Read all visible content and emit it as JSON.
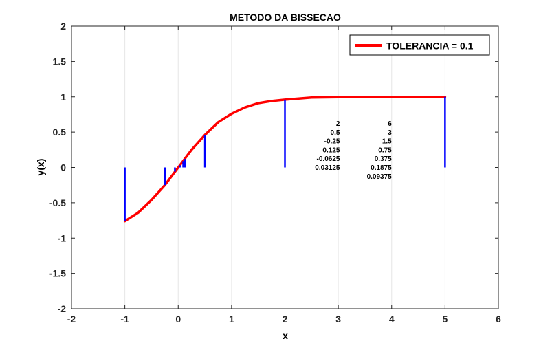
{
  "chart_data": {
    "type": "line",
    "title": "METODO DA BISSECAO",
    "xlabel": "x",
    "ylabel": "y(x)",
    "xlim": [
      -2,
      6
    ],
    "ylim": [
      -2,
      2
    ],
    "xticks": [
      -2,
      -1,
      0,
      1,
      2,
      3,
      4,
      5,
      6
    ],
    "yticks": [
      -2,
      -1.5,
      -1,
      -0.5,
      0,
      0.5,
      1,
      1.5,
      2
    ],
    "xtick_labels": [
      "-2",
      "-1",
      "0",
      "1",
      "2",
      "3",
      "4",
      "5",
      "6"
    ],
    "ytick_labels": [
      "-2",
      "-1.5",
      "-1",
      "-0.5",
      "0",
      "0.5",
      "1",
      "1.5",
      "2"
    ],
    "grid": "x-only",
    "legend_position": "top-right",
    "series": [
      {
        "name": "TOLERANCIA = 0.1",
        "color": "#ff0000",
        "kind": "line",
        "x": [
          -1,
          -0.75,
          -0.5,
          -0.25,
          0,
          0.25,
          0.5,
          0.75,
          1,
          1.25,
          1.5,
          1.75,
          2,
          2.5,
          3,
          3.5,
          4,
          4.5,
          5
        ],
        "y": [
          -0.76,
          -0.64,
          -0.46,
          -0.25,
          0,
          0.25,
          0.46,
          0.64,
          0.76,
          0.85,
          0.91,
          0.94,
          0.96,
          0.99,
          0.995,
          1,
          1,
          1,
          1
        ]
      }
    ],
    "stems": {
      "color": "#0000ff",
      "points": [
        {
          "x": -1,
          "y": -0.76
        },
        {
          "x": 5,
          "y": 1
        },
        {
          "x": 2,
          "y": 0.96
        },
        {
          "x": 0.5,
          "y": 0.46
        },
        {
          "x": -0.25,
          "y": -0.25
        },
        {
          "x": 0.125,
          "y": 0.12
        },
        {
          "x": -0.0625,
          "y": -0.06
        },
        {
          "x": 0.03125,
          "y": 0.03
        },
        {
          "x": 0.09375,
          "y": 0.09
        }
      ]
    },
    "annotations": {
      "columns": [
        [
          "2",
          "0.5",
          "-0.25",
          "0.125",
          "-0.0625",
          "0.03125"
        ],
        [
          "6",
          "3",
          "1.5",
          "0.75",
          "0.375",
          "0.1875",
          "0.09375"
        ]
      ]
    }
  }
}
